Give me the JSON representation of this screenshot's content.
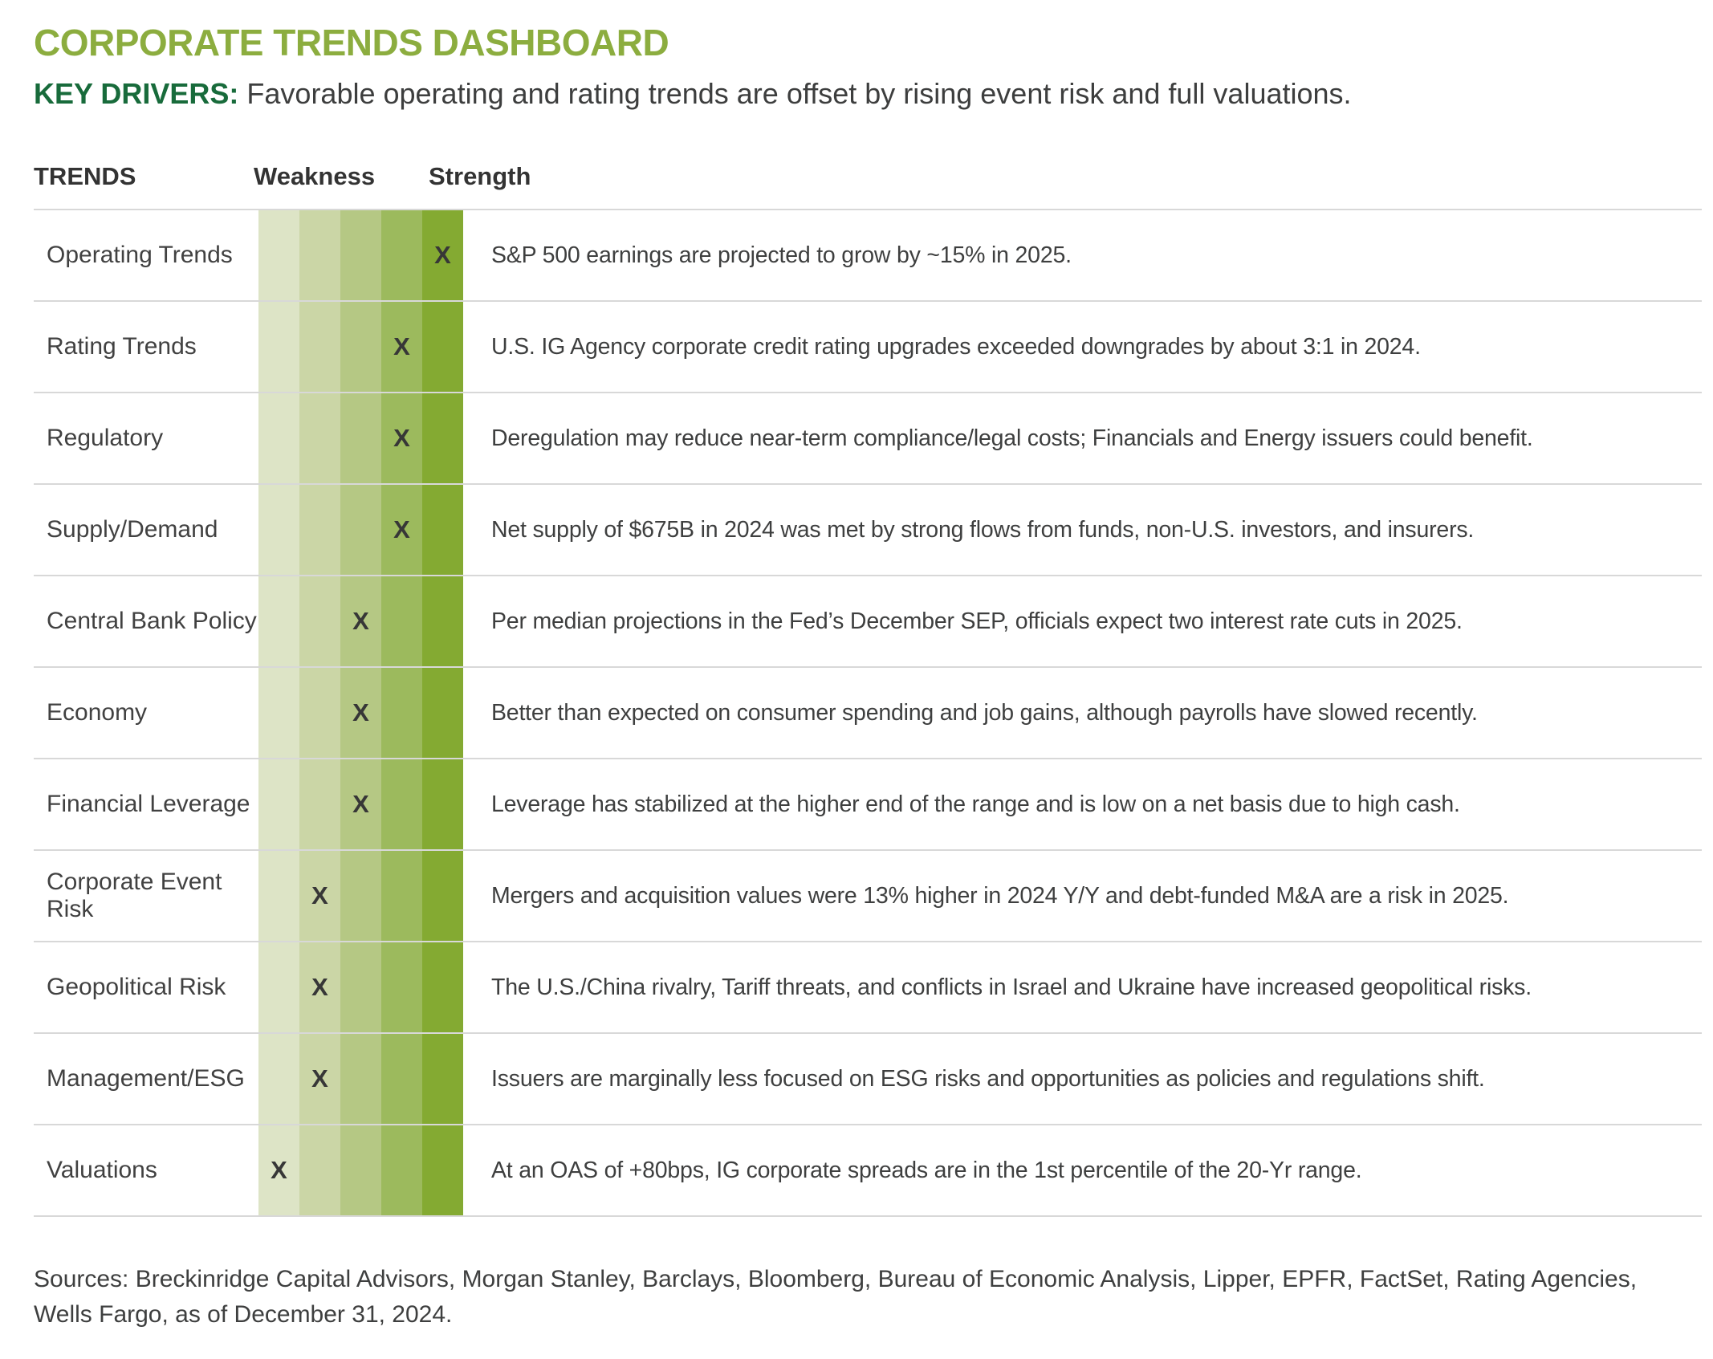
{
  "page": {
    "title": "CORPORATE TRENDS DASHBOARD",
    "key_drivers_label": "KEY DRIVERS:",
    "key_drivers_text": "Favorable operating and rating trends are offset by rising event risk and full valuations."
  },
  "table": {
    "headers": {
      "trends": "TRENDS",
      "weakness": "Weakness",
      "strength": "Strength"
    },
    "marker": "X",
    "scale_levels": 5,
    "rows": [
      {
        "trend": "Operating Trends",
        "level": 5,
        "description": "S&P 500 earnings are projected to grow by ~15% in 2025."
      },
      {
        "trend": "Rating Trends",
        "level": 4,
        "description": "U.S. IG Agency corporate credit rating upgrades exceeded downgrades by about 3:1 in 2024."
      },
      {
        "trend": "Regulatory",
        "level": 4,
        "description": "Deregulation may reduce near-term compliance/legal costs; Financials and Energy issuers could benefit."
      },
      {
        "trend": "Supply/Demand",
        "level": 4,
        "description": "Net supply of $675B in 2024 was met by strong flows from funds, non-U.S. investors, and insurers."
      },
      {
        "trend": "Central Bank Policy",
        "level": 3,
        "description": "Per median projections in the Fed’s December SEP, officials expect two interest rate cuts in 2025."
      },
      {
        "trend": "Economy",
        "level": 3,
        "description": "Better than expected on consumer spending and job gains, although payrolls have slowed recently."
      },
      {
        "trend": "Financial Leverage",
        "level": 3,
        "description": "Leverage has stabilized at the higher end of the range and is low on a net basis due to high cash."
      },
      {
        "trend": "Corporate Event Risk",
        "level": 2,
        "description": "Mergers and acquisition values were 13% higher in 2024 Y/Y and debt-funded M&A are a risk in 2025."
      },
      {
        "trend": "Geopolitical Risk",
        "level": 2,
        "description": "The U.S./China rivalry, Tariff threats, and conflicts in Israel and Ukraine have increased geopolitical risks."
      },
      {
        "trend": "Management/ESG",
        "level": 2,
        "description": "Issuers are marginally less focused on ESG risks and opportunities as policies and regulations shift."
      },
      {
        "trend": "Valuations",
        "level": 1,
        "description": "At an OAS of +80bps, IG corporate spreads are in the 1st percentile of the 20-Yr range."
      }
    ]
  },
  "footer": {
    "sources_line1": "Sources: Breckinridge Capital Advisors, Morgan Stanley, Barclays, Bloomberg, Bureau of Economic Analysis, Lipper, EPFR, FactSet, Rating Agencies,",
    "sources_line2": "Wells Fargo, as of December 31, 2024."
  },
  "colors": {
    "title_green": "#8cad3f",
    "key_drivers_green": "#186b3b",
    "text_dark": "#3e3f3f",
    "row_line": "#d8d8d8",
    "band": [
      "#dde4c6",
      "#cbd6a6",
      "#b5c884",
      "#9cba5d",
      "#84aa32"
    ]
  }
}
